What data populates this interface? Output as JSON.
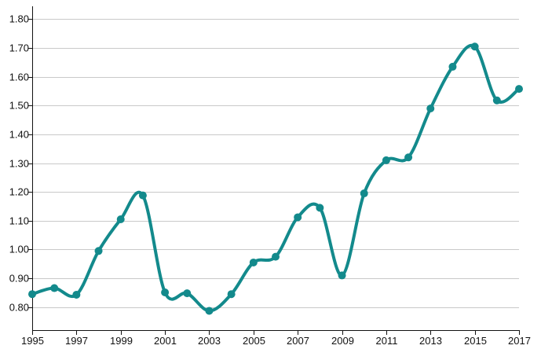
{
  "chart_data": {
    "type": "line",
    "title": "",
    "xlabel": "",
    "ylabel": "",
    "x": [
      1995,
      1996,
      1997,
      1998,
      1999,
      2000,
      2001,
      2002,
      2003,
      2004,
      2005,
      2006,
      2007,
      2008,
      2009,
      2010,
      2011,
      2012,
      2013,
      2014,
      2015,
      2016,
      2017
    ],
    "series": [
      {
        "values": [
          0.845,
          0.866,
          0.843,
          0.995,
          1.105,
          1.188,
          0.851,
          0.848,
          0.787,
          0.845,
          0.955,
          0.975,
          1.112,
          1.145,
          0.91,
          1.195,
          1.31,
          1.32,
          1.49,
          1.635,
          1.705,
          1.518,
          1.558
        ]
      }
    ],
    "xlim": [
      1995,
      2017
    ],
    "ylim": [
      0.72,
      1.845
    ],
    "x_ticks": [
      "1995",
      "1997",
      "1999",
      "2001",
      "2003",
      "2005",
      "2007",
      "2009",
      "2011",
      "2013",
      "2015",
      "2017"
    ],
    "y_ticks": [
      "0.80",
      "0.90",
      "1.00",
      "1.10",
      "1.20",
      "1.30",
      "1.40",
      "1.50",
      "1.60",
      "1.70",
      "1.80"
    ],
    "grid": "horizontal",
    "legend": "none",
    "colors": {
      "series": "#138a8c",
      "grid": "#c9c9c9",
      "axis": "#111111"
    }
  }
}
